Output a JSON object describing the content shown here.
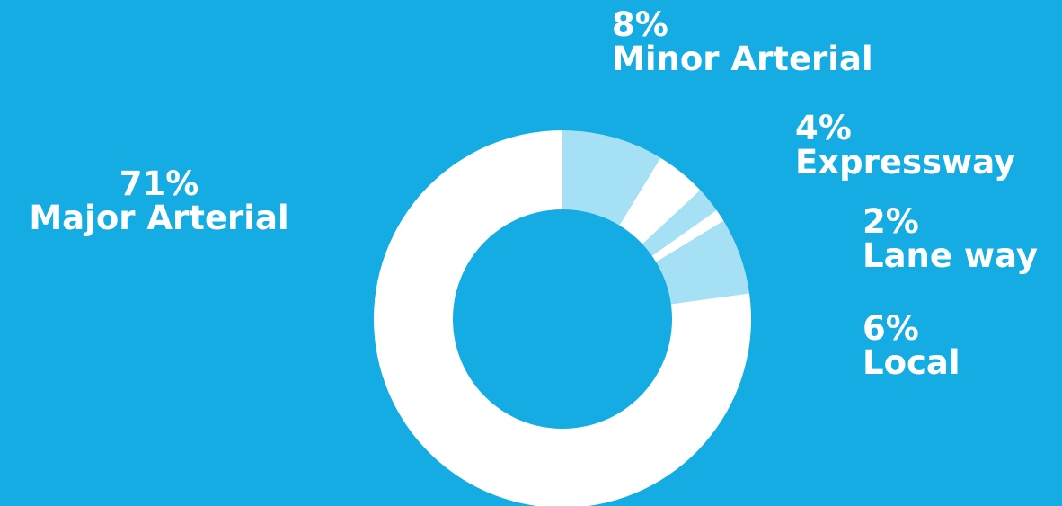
{
  "colors": {
    "background": "#14ace2",
    "slice_primary": "#ffffff",
    "slice_alternate": "#a6e0f5",
    "label_text": "#ffffff"
  },
  "chart_data": {
    "type": "pie",
    "donut": true,
    "title": "",
    "legend": "none",
    "slices": [
      {
        "name": "Minor Arterial",
        "value": 8,
        "label": "8%",
        "color": "#a6e0f5"
      },
      {
        "name": "Expressway",
        "value": 4,
        "label": "4%",
        "color": "#ffffff"
      },
      {
        "name": "Lane way",
        "value": 2,
        "label": "2%",
        "color": "#a6e0f5"
      },
      {
        "name": "",
        "value": 1,
        "label": "",
        "color": "#ffffff"
      },
      {
        "name": "Local",
        "value": 6,
        "label": "6%",
        "color": "#a6e0f5"
      },
      {
        "name": "Major Arterial",
        "value": 71,
        "label": "71%",
        "color": "#ffffff"
      }
    ]
  }
}
